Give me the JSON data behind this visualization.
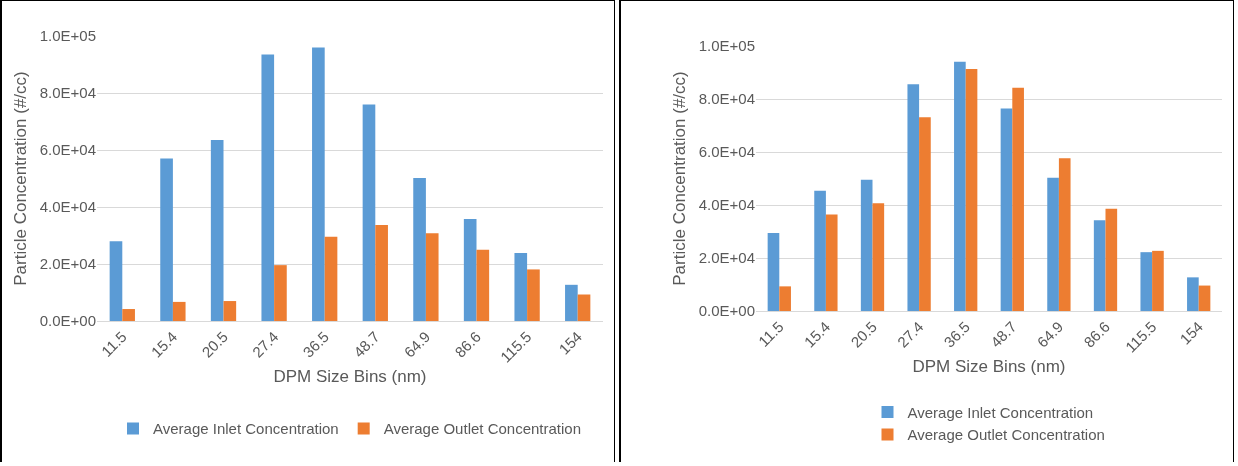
{
  "chart_data": [
    {
      "type": "bar",
      "xlabel": "DPM Size Bins (nm)",
      "ylabel": "Particle Concentration (#/cc)",
      "categories": [
        "11.5",
        "15.4",
        "20.5",
        "27.4",
        "36.5",
        "48.7",
        "64.9",
        "86.6",
        "115.5",
        "154"
      ],
      "series": [
        {
          "name": "Average Inlet Concentration",
          "color": "#5b9bd5",
          "values": [
            28000,
            57000,
            63500,
            93500,
            96000,
            76000,
            50200,
            35800,
            23900,
            12700
          ]
        },
        {
          "name": "Average Outlet Concentration",
          "color": "#ed7d31",
          "values": [
            4200,
            6700,
            7000,
            19600,
            29600,
            33700,
            30800,
            25000,
            18100,
            9300
          ]
        }
      ],
      "ylim": [
        0,
        100000
      ],
      "yticks": [
        {
          "value": 0,
          "label": "0.0E+00"
        },
        {
          "value": 20000,
          "label": "2.0E+04"
        },
        {
          "value": 40000,
          "label": "4.0E+04"
        },
        {
          "value": 60000,
          "label": "6.0E+04"
        },
        {
          "value": 80000,
          "label": "8.0E+04"
        },
        {
          "value": 100000,
          "label": "1.0E+05"
        }
      ],
      "grid": "y",
      "legend": "bottom"
    },
    {
      "type": "bar",
      "xlabel": "DPM Size Bins (nm)",
      "ylabel": "Particle Concentration (#/cc)",
      "categories": [
        "11.5",
        "15.4",
        "20.5",
        "27.4",
        "36.5",
        "48.7",
        "64.9",
        "86.6",
        "115.5",
        "154"
      ],
      "series": [
        {
          "name": "Average Inlet Concentration",
          "color": "#5b9bd5",
          "values": [
            29400,
            45400,
            49500,
            85600,
            94100,
            76400,
            50300,
            34200,
            22200,
            12700
          ]
        },
        {
          "name": "Average Outlet Concentration",
          "color": "#ed7d31",
          "values": [
            9300,
            36400,
            40700,
            73100,
            91300,
            84200,
            57600,
            38600,
            22700,
            9600
          ]
        }
      ],
      "ylim": [
        0,
        100000
      ],
      "yticks": [
        {
          "value": 0,
          "label": "0.0E+00"
        },
        {
          "value": 20000,
          "label": "2.0E+04"
        },
        {
          "value": 40000,
          "label": "4.0E+04"
        },
        {
          "value": 60000,
          "label": "6.0E+04"
        },
        {
          "value": 80000,
          "label": "8.0E+04"
        },
        {
          "value": 100000,
          "label": "1.0E+05"
        }
      ],
      "grid": "y",
      "legend": "bottom"
    }
  ]
}
